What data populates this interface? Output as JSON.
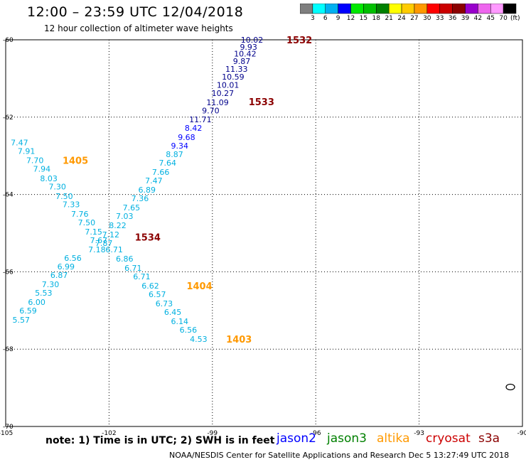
{
  "header": {
    "title": "12:00 – 23:59 UTC 12/04/2018",
    "subtitle": "12 hour collection of altimeter wave heights"
  },
  "colorbar": {
    "labels": [
      "3",
      "6",
      "9",
      "12",
      "15",
      "18",
      "21",
      "24",
      "27",
      "30",
      "33",
      "36",
      "39",
      "42",
      "45",
      "70"
    ],
    "unit": "(ft)",
    "colors": [
      "#7f7f7f",
      "#00ffff",
      "#00b0f0",
      "#0000ff",
      "#00e800",
      "#00c000",
      "#008000",
      "#ffff00",
      "#ffcc00",
      "#ff9900",
      "#ff0000",
      "#cc0000",
      "#8b0000",
      "#9900cc",
      "#ee66ee",
      "#ff99ff",
      "#000000"
    ]
  },
  "note": "note: 1) Time is in UTC; 2) SWH is in feet",
  "satellites": [
    {
      "name": "jason2",
      "color": "#0000ff"
    },
    {
      "name": "jason3",
      "color": "#008000"
    },
    {
      "name": "altika",
      "color": "#ff9900"
    },
    {
      "name": "cryosat",
      "color": "#cc0000"
    },
    {
      "name": "s3a",
      "color": "#8b0000"
    }
  ],
  "footer": "NOAA/NESDIS Center for Satellite Applications and Research    Dec  5 13:27:49 UTC 2018",
  "chart_data": {
    "type": "scatter",
    "title": "12:00 – 23:59 UTC 12/04/2018",
    "xlim": [
      -105,
      -90
    ],
    "ylim": [
      -70,
      -60
    ],
    "x_ticks": [
      "-105",
      "-102",
      "-99",
      "-96",
      "-93",
      "-90"
    ],
    "y_ticks": [
      "-60",
      "-62",
      "-64",
      "-66",
      "-68",
      "-70"
    ],
    "grid": true,
    "series": [
      {
        "name": "jason2",
        "color": "#00008b",
        "points": [
          {
            "x": -97.85,
            "y": -60.0,
            "label": "10.02"
          },
          {
            "x": -97.95,
            "y": -60.18,
            "label": "9.93"
          },
          {
            "x": -98.05,
            "y": -60.36,
            "label": "10.42"
          },
          {
            "x": -98.15,
            "y": -60.55,
            "label": "9.87"
          },
          {
            "x": -98.3,
            "y": -60.75,
            "label": "11.33"
          },
          {
            "x": -98.4,
            "y": -60.96,
            "label": "10.59"
          },
          {
            "x": -98.55,
            "y": -61.17,
            "label": "10.01"
          },
          {
            "x": -98.7,
            "y": -61.38,
            "label": "10.27"
          },
          {
            "x": -98.85,
            "y": -61.62,
            "label": "11.09"
          },
          {
            "x": -99.05,
            "y": -61.83,
            "label": "9.70"
          },
          {
            "x": -99.35,
            "y": -62.06,
            "label": "11.71"
          }
        ]
      },
      {
        "name": "jason2",
        "color": "#0000ff",
        "points": [
          {
            "x": -99.55,
            "y": -62.28,
            "label": "8.42"
          },
          {
            "x": -99.75,
            "y": -62.52,
            "label": "9.68"
          },
          {
            "x": -99.95,
            "y": -62.74,
            "label": "9.34"
          }
        ]
      },
      {
        "name": "altika",
        "color": "#00b0e0",
        "points": [
          {
            "x": -100.1,
            "y": -62.96,
            "label": "8.87"
          },
          {
            "x": -100.3,
            "y": -63.18,
            "label": "7.64"
          },
          {
            "x": -100.5,
            "y": -63.42,
            "label": "7.66"
          },
          {
            "x": -100.7,
            "y": -63.64,
            "label": "7.47"
          },
          {
            "x": -100.9,
            "y": -63.88,
            "label": "6.89"
          },
          {
            "x": -101.1,
            "y": -64.1,
            "label": "7.36"
          },
          {
            "x": -101.35,
            "y": -64.34,
            "label": "7.65"
          },
          {
            "x": -101.55,
            "y": -64.56,
            "label": "7.03"
          },
          {
            "x": -101.75,
            "y": -64.8,
            "label": "8.22"
          },
          {
            "x": -101.95,
            "y": -65.04,
            "label": "7.12"
          },
          {
            "x": -102.15,
            "y": -65.26,
            "label": "7.87"
          }
        ]
      },
      {
        "name": "altika",
        "color": "#00b0e0",
        "points": [
          {
            "x": -104.6,
            "y": -62.66,
            "label": "7.47"
          },
          {
            "x": -104.4,
            "y": -62.88,
            "label": "7.91"
          },
          {
            "x": -104.15,
            "y": -63.12,
            "label": "7.70"
          },
          {
            "x": -103.95,
            "y": -63.34,
            "label": "7.94"
          },
          {
            "x": -103.75,
            "y": -63.58,
            "label": "8.03"
          },
          {
            "x": -103.5,
            "y": -63.8,
            "label": "7.30"
          },
          {
            "x": -103.3,
            "y": -64.04,
            "label": "7.50"
          },
          {
            "x": -103.1,
            "y": -64.26,
            "label": "7.33"
          },
          {
            "x": -102.85,
            "y": -64.5,
            "label": "7.76"
          },
          {
            "x": -102.65,
            "y": -64.72,
            "label": "7.50"
          },
          {
            "x": -102.45,
            "y": -64.96,
            "label": "7.15"
          },
          {
            "x": -102.3,
            "y": -65.18,
            "label": "7.67"
          },
          {
            "x": -102.35,
            "y": -65.42,
            "label": "7.18"
          },
          {
            "x": -101.85,
            "y": -65.42,
            "label": "6.71"
          },
          {
            "x": -103.05,
            "y": -65.64,
            "label": "6.56"
          },
          {
            "x": -103.25,
            "y": -65.86,
            "label": "6.99"
          },
          {
            "x": -103.45,
            "y": -66.08,
            "label": "6.87"
          },
          {
            "x": -103.7,
            "y": -66.32,
            "label": "7.30"
          },
          {
            "x": -103.9,
            "y": -66.54,
            "label": "5.53"
          },
          {
            "x": -104.1,
            "y": -66.78,
            "label": "6.00"
          },
          {
            "x": -104.35,
            "y": -67.0,
            "label": "6.59"
          },
          {
            "x": -104.55,
            "y": -67.24,
            "label": "5.57"
          }
        ]
      },
      {
        "name": "altika",
        "color": "#00b0e0",
        "points": [
          {
            "x": -101.55,
            "y": -65.66,
            "label": "6.86"
          },
          {
            "x": -101.3,
            "y": -65.9,
            "label": "6.71"
          },
          {
            "x": -101.05,
            "y": -66.12,
            "label": "6.71"
          },
          {
            "x": -100.8,
            "y": -66.36,
            "label": "6.62"
          },
          {
            "x": -100.6,
            "y": -66.58,
            "label": "6.57"
          },
          {
            "x": -100.4,
            "y": -66.82,
            "label": "6.73"
          },
          {
            "x": -100.15,
            "y": -67.04,
            "label": "6.45"
          },
          {
            "x": -99.95,
            "y": -67.28,
            "label": "6.14"
          },
          {
            "x": -99.7,
            "y": -67.5,
            "label": "6.56"
          },
          {
            "x": -99.4,
            "y": -67.74,
            "label": "4.53"
          }
        ]
      }
    ],
    "annotations": [
      {
        "text": "1532",
        "x": -96.85,
        "y": -60.0,
        "color": "#8b0000"
      },
      {
        "text": "1533",
        "x": -97.95,
        "y": -61.6,
        "color": "#8b0000"
      },
      {
        "text": "1534",
        "x": -101.25,
        "y": -65.1,
        "color": "#8b0000"
      },
      {
        "text": "1405",
        "x": -103.35,
        "y": -63.12,
        "color": "#ff9900"
      },
      {
        "text": "1404",
        "x": -99.75,
        "y": -66.36,
        "color": "#ff9900"
      },
      {
        "text": "1403",
        "x": -98.6,
        "y": -67.74,
        "color": "#ff9900"
      }
    ],
    "island": {
      "x": -90.35,
      "y": -68.98
    }
  }
}
